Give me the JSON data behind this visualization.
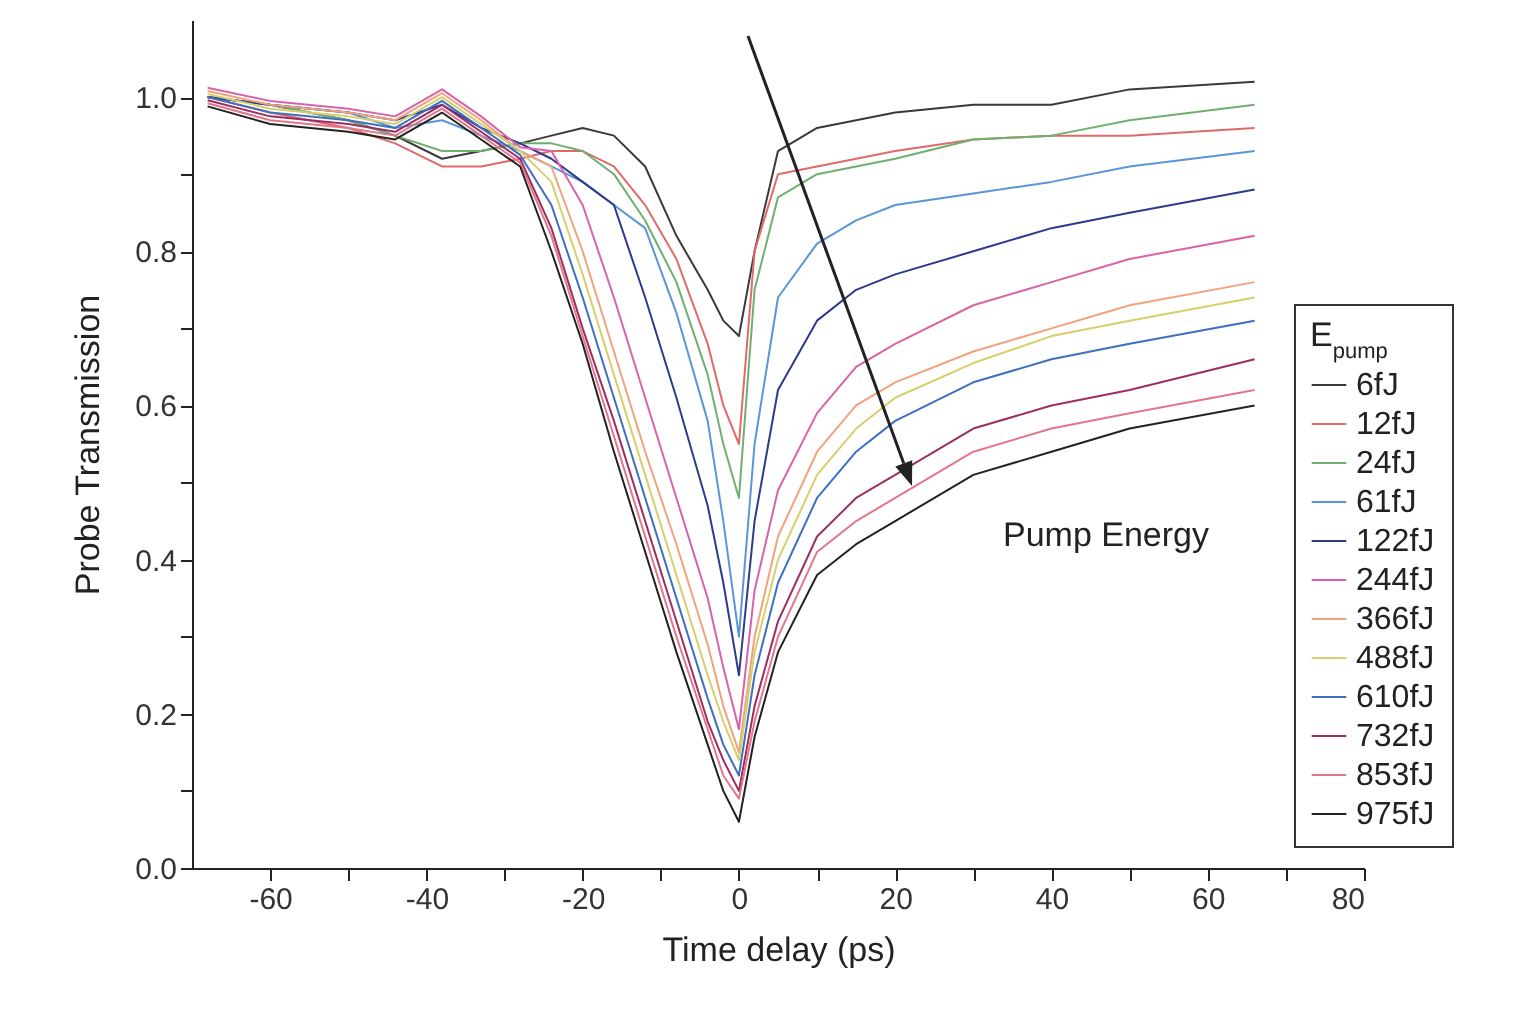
{
  "chart_data": {
    "type": "line",
    "xlabel": "Time delay (ps)",
    "ylabel": "Probe Transmission",
    "legend_title": "E$_{pump}$",
    "legend": "right",
    "grid": false,
    "marker": "none",
    "line_style": "solid",
    "xlim": [
      -70,
      80
    ],
    "ylim": [
      0,
      1.1
    ],
    "xticks": [
      -60,
      {
        "value": -50,
        "label": null
      },
      -40,
      {
        "value": -30,
        "label": null
      },
      -20,
      {
        "value": -10,
        "label": null
      },
      0,
      {
        "value": 10,
        "label": null
      },
      20,
      {
        "value": 30,
        "label": null
      },
      40,
      {
        "value": 50,
        "label": null
      },
      60,
      {
        "value": 70,
        "label": null
      },
      80
    ],
    "yticks": [
      {
        "value": 0,
        "label": "0.0"
      },
      {
        "value": 0.1,
        "label": null
      },
      0.2,
      {
        "value": 0.3,
        "label": null
      },
      0.4,
      {
        "value": 0.5,
        "label": null
      },
      0.6,
      {
        "value": 0.7,
        "label": null
      },
      0.8,
      {
        "value": 0.9,
        "label": null
      },
      {
        "value": 1,
        "label": "1.0"
      }
    ],
    "annotations": [
      "Pump Energy"
    ],
    "x": [
      -68,
      -60,
      -50,
      -44,
      -38,
      -33,
      -28,
      -24,
      -20,
      -16,
      -12,
      -8,
      -4,
      -2,
      0,
      2,
      5,
      10,
      15,
      20,
      30,
      40,
      50,
      66
    ],
    "series": [
      {
        "name": "6fJ",
        "color": "#3a3a3a",
        "values": [
          1.0,
          0.99,
          0.97,
          0.95,
          0.92,
          0.93,
          0.94,
          0.95,
          0.96,
          0.95,
          0.91,
          0.82,
          0.75,
          0.71,
          0.69,
          0.8,
          0.93,
          0.96,
          0.97,
          0.98,
          0.99,
          0.99,
          1.01,
          1.02
        ]
      },
      {
        "name": "12fJ",
        "color": "#e06a6a",
        "values": [
          1.0,
          0.98,
          0.96,
          0.94,
          0.91,
          0.91,
          0.92,
          0.93,
          0.93,
          0.91,
          0.86,
          0.79,
          0.68,
          0.6,
          0.55,
          0.8,
          0.9,
          0.91,
          0.92,
          0.93,
          0.945,
          0.95,
          0.95,
          0.96
        ]
      },
      {
        "name": "24fJ",
        "color": "#6fb06f",
        "values": [
          1.0,
          0.99,
          0.97,
          0.95,
          0.93,
          0.93,
          0.94,
          0.94,
          0.93,
          0.9,
          0.84,
          0.76,
          0.64,
          0.55,
          0.48,
          0.75,
          0.87,
          0.9,
          0.91,
          0.92,
          0.945,
          0.95,
          0.97,
          0.99
        ]
      },
      {
        "name": "61fJ",
        "color": "#5a96d6",
        "values": [
          1.0,
          0.99,
          0.98,
          0.96,
          0.97,
          0.95,
          0.93,
          0.91,
          0.89,
          0.86,
          0.83,
          0.72,
          0.58,
          0.45,
          0.3,
          0.55,
          0.74,
          0.81,
          0.84,
          0.86,
          0.875,
          0.89,
          0.91,
          0.93
        ]
      },
      {
        "name": "122fJ",
        "color": "#2e3a8c",
        "values": [
          1.0,
          0.99,
          0.98,
          0.97,
          0.99,
          0.96,
          0.94,
          0.92,
          0.89,
          0.86,
          0.74,
          0.61,
          0.47,
          0.37,
          0.25,
          0.45,
          0.62,
          0.71,
          0.75,
          0.77,
          0.8,
          0.83,
          0.85,
          0.88
        ]
      },
      {
        "name": "244fJ",
        "color": "#d863a8",
        "values": [
          1.012,
          0.995,
          0.985,
          0.975,
          1.01,
          0.975,
          0.935,
          0.93,
          0.86,
          0.74,
          0.61,
          0.48,
          0.35,
          0.26,
          0.18,
          0.36,
          0.49,
          0.59,
          0.65,
          0.68,
          0.73,
          0.76,
          0.79,
          0.82
        ]
      },
      {
        "name": "366fJ",
        "color": "#f2a27c",
        "values": [
          1.008,
          0.99,
          0.98,
          0.97,
          1.005,
          0.97,
          0.93,
          0.91,
          0.8,
          0.67,
          0.54,
          0.42,
          0.29,
          0.21,
          0.15,
          0.3,
          0.43,
          0.54,
          0.6,
          0.63,
          0.67,
          0.7,
          0.73,
          0.76
        ]
      },
      {
        "name": "488fJ",
        "color": "#d6cf6c",
        "values": [
          1.004,
          0.985,
          0.975,
          0.965,
          1.0,
          0.965,
          0.93,
          0.89,
          0.77,
          0.64,
          0.51,
          0.38,
          0.25,
          0.19,
          0.14,
          0.28,
          0.4,
          0.51,
          0.57,
          0.61,
          0.655,
          0.69,
          0.71,
          0.74
        ]
      },
      {
        "name": "610fJ",
        "color": "#3f6fbf",
        "values": [
          1.0,
          0.98,
          0.97,
          0.96,
          0.995,
          0.96,
          0.925,
          0.86,
          0.74,
          0.61,
          0.48,
          0.35,
          0.22,
          0.16,
          0.12,
          0.25,
          0.37,
          0.48,
          0.54,
          0.58,
          0.63,
          0.66,
          0.68,
          0.71
        ]
      },
      {
        "name": "732fJ",
        "color": "#9c2e62",
        "values": [
          0.996,
          0.975,
          0.965,
          0.955,
          0.99,
          0.955,
          0.92,
          0.83,
          0.7,
          0.58,
          0.45,
          0.32,
          0.19,
          0.14,
          0.1,
          0.21,
          0.32,
          0.43,
          0.48,
          0.51,
          0.57,
          0.6,
          0.62,
          0.66
        ]
      },
      {
        "name": "853fJ",
        "color": "#e3768a",
        "values": [
          0.992,
          0.97,
          0.96,
          0.95,
          0.985,
          0.95,
          0.915,
          0.82,
          0.69,
          0.56,
          0.43,
          0.3,
          0.18,
          0.12,
          0.09,
          0.19,
          0.3,
          0.41,
          0.45,
          0.48,
          0.54,
          0.57,
          0.59,
          0.62
        ]
      },
      {
        "name": "975fJ",
        "color": "#222222",
        "values": [
          0.988,
          0.965,
          0.955,
          0.945,
          0.98,
          0.945,
          0.91,
          0.8,
          0.68,
          0.54,
          0.41,
          0.28,
          0.16,
          0.1,
          0.06,
          0.17,
          0.28,
          0.38,
          0.42,
          0.45,
          0.51,
          0.54,
          0.57,
          0.6
        ]
      }
    ]
  }
}
